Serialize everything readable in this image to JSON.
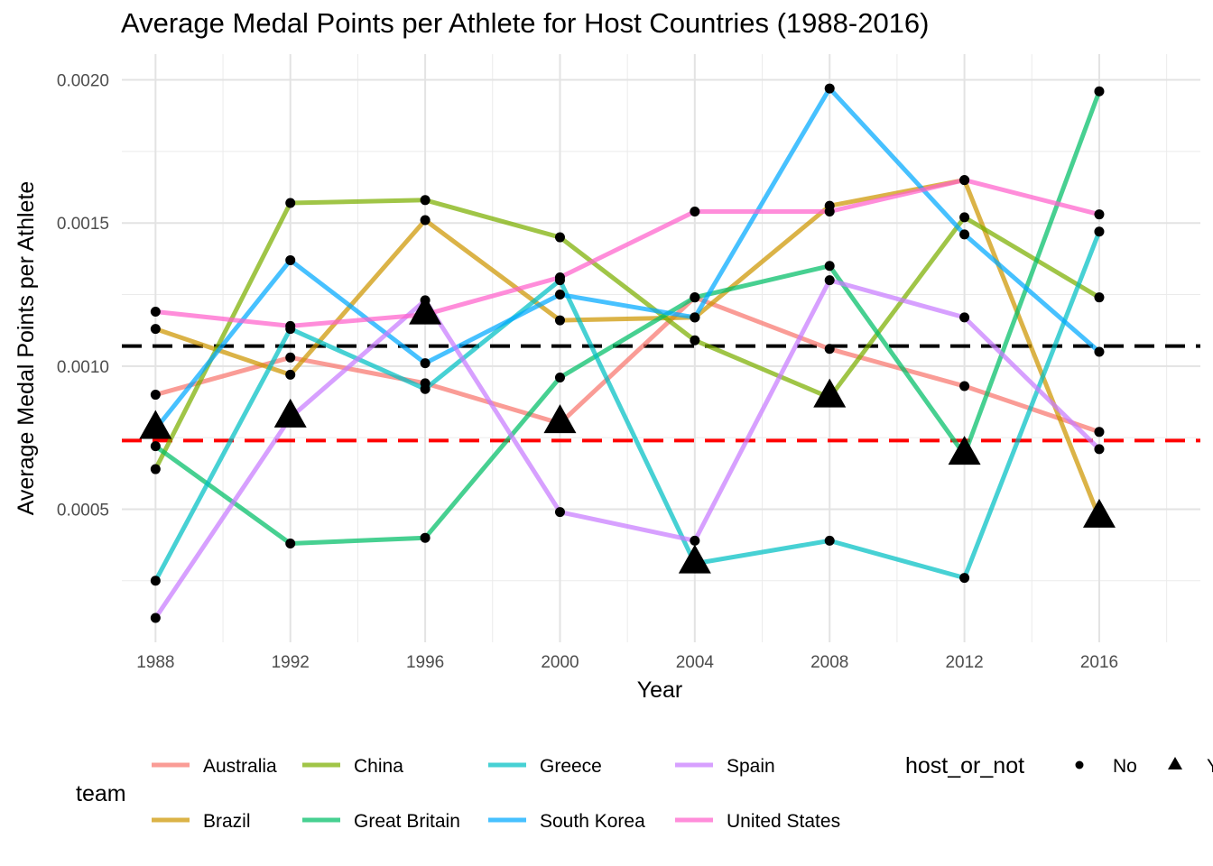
{
  "chart_data": {
    "type": "line",
    "title": "Average Medal Points per Athlete for Host Countries (1988-2016)",
    "xlabel": "Year",
    "ylabel": "Average Medal Points per Athlete",
    "x": [
      1988,
      1992,
      1996,
      2000,
      2004,
      2008,
      2012,
      2016
    ],
    "xlim": [
      1987,
      2019
    ],
    "ylim": [
      3.5e-05,
      0.00209
    ],
    "y_ticks": [
      0.0005,
      0.001,
      0.0015,
      0.002
    ],
    "y_tick_labels": [
      "0.0005",
      "0.0010",
      "0.0015",
      "0.0020"
    ],
    "x_tick_labels": [
      "1988",
      "1992",
      "1996",
      "2000",
      "2004",
      "2008",
      "2012",
      "2016"
    ],
    "grid": true,
    "reference_lines": [
      {
        "y": 0.00107,
        "color": "#000000",
        "style": "dashed"
      },
      {
        "y": 0.00074,
        "color": "#ff0000",
        "style": "dashed"
      }
    ],
    "series": [
      {
        "name": "Australia",
        "color": "#F8766D",
        "values": [
          0.0009,
          0.00103,
          0.00094,
          0.0008,
          0.00124,
          0.00106,
          0.00093,
          0.00077
        ],
        "host": [
          0,
          0,
          0,
          1,
          0,
          0,
          0,
          0
        ]
      },
      {
        "name": "Brazil",
        "color": "#CD9600",
        "values": [
          0.00113,
          0.00097,
          0.00151,
          0.00116,
          0.00117,
          0.00156,
          0.00165,
          0.00047
        ],
        "host": [
          0,
          0,
          0,
          0,
          0,
          0,
          0,
          1
        ]
      },
      {
        "name": "China",
        "color": "#7CAE00",
        "values": [
          0.00064,
          0.00157,
          0.00158,
          0.00145,
          0.00109,
          0.00089,
          0.00152,
          0.00124
        ],
        "host": [
          0,
          0,
          0,
          0,
          0,
          1,
          0,
          0
        ]
      },
      {
        "name": "Great Britain",
        "color": "#00BE67",
        "values": [
          0.00072,
          0.00038,
          0.0004,
          0.00096,
          0.00124,
          0.00135,
          0.00069,
          0.00196
        ],
        "host": [
          0,
          0,
          0,
          0,
          0,
          0,
          1,
          0
        ]
      },
      {
        "name": "Greece",
        "color": "#00BFC4",
        "values": [
          0.00025,
          0.00113,
          0.00092,
          0.0013,
          0.00031,
          0.00039,
          0.00026,
          0.00147
        ],
        "host": [
          0,
          0,
          0,
          0,
          1,
          0,
          0,
          0
        ]
      },
      {
        "name": "South Korea",
        "color": "#00A9FF",
        "values": [
          0.00078,
          0.00137,
          0.00101,
          0.00125,
          0.00117,
          0.00197,
          0.00146,
          0.00105
        ],
        "host": [
          1,
          0,
          0,
          0,
          0,
          0,
          0,
          0
        ]
      },
      {
        "name": "Spain",
        "color": "#C77CFF",
        "values": [
          0.00012,
          0.00082,
          0.00123,
          0.00049,
          0.00039,
          0.0013,
          0.00117,
          0.00071
        ],
        "host": [
          0,
          1,
          0,
          0,
          0,
          0,
          0,
          0
        ]
      },
      {
        "name": "United States",
        "color": "#FF61CC",
        "values": [
          0.00119,
          0.00114,
          0.00118,
          0.00131,
          0.00154,
          0.00154,
          0.00165,
          0.00153
        ],
        "host": [
          0,
          0,
          1,
          0,
          0,
          0,
          0,
          0
        ]
      }
    ],
    "legend": {
      "team_title": "team",
      "shape_title": "host_or_not",
      "shape_no": "No",
      "shape_yes": "Y",
      "placement": "bottom"
    }
  }
}
